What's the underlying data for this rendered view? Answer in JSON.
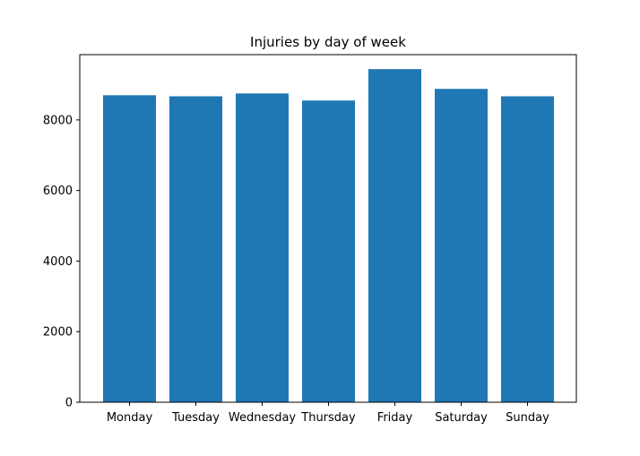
{
  "chart_data": {
    "type": "bar",
    "title": "Injuries by day of week",
    "xlabel": "",
    "ylabel": "",
    "categories": [
      "Monday",
      "Tuesday",
      "Wednesday",
      "Thursday",
      "Friday",
      "Saturday",
      "Sunday"
    ],
    "values": [
      8700,
      8670,
      8750,
      8550,
      9440,
      8880,
      8670
    ],
    "ylim": [
      0,
      9850
    ],
    "yticks": [
      0,
      2000,
      4000,
      6000,
      8000
    ],
    "grid": false,
    "legend": "none",
    "bar_color": "#1f77b4"
  }
}
